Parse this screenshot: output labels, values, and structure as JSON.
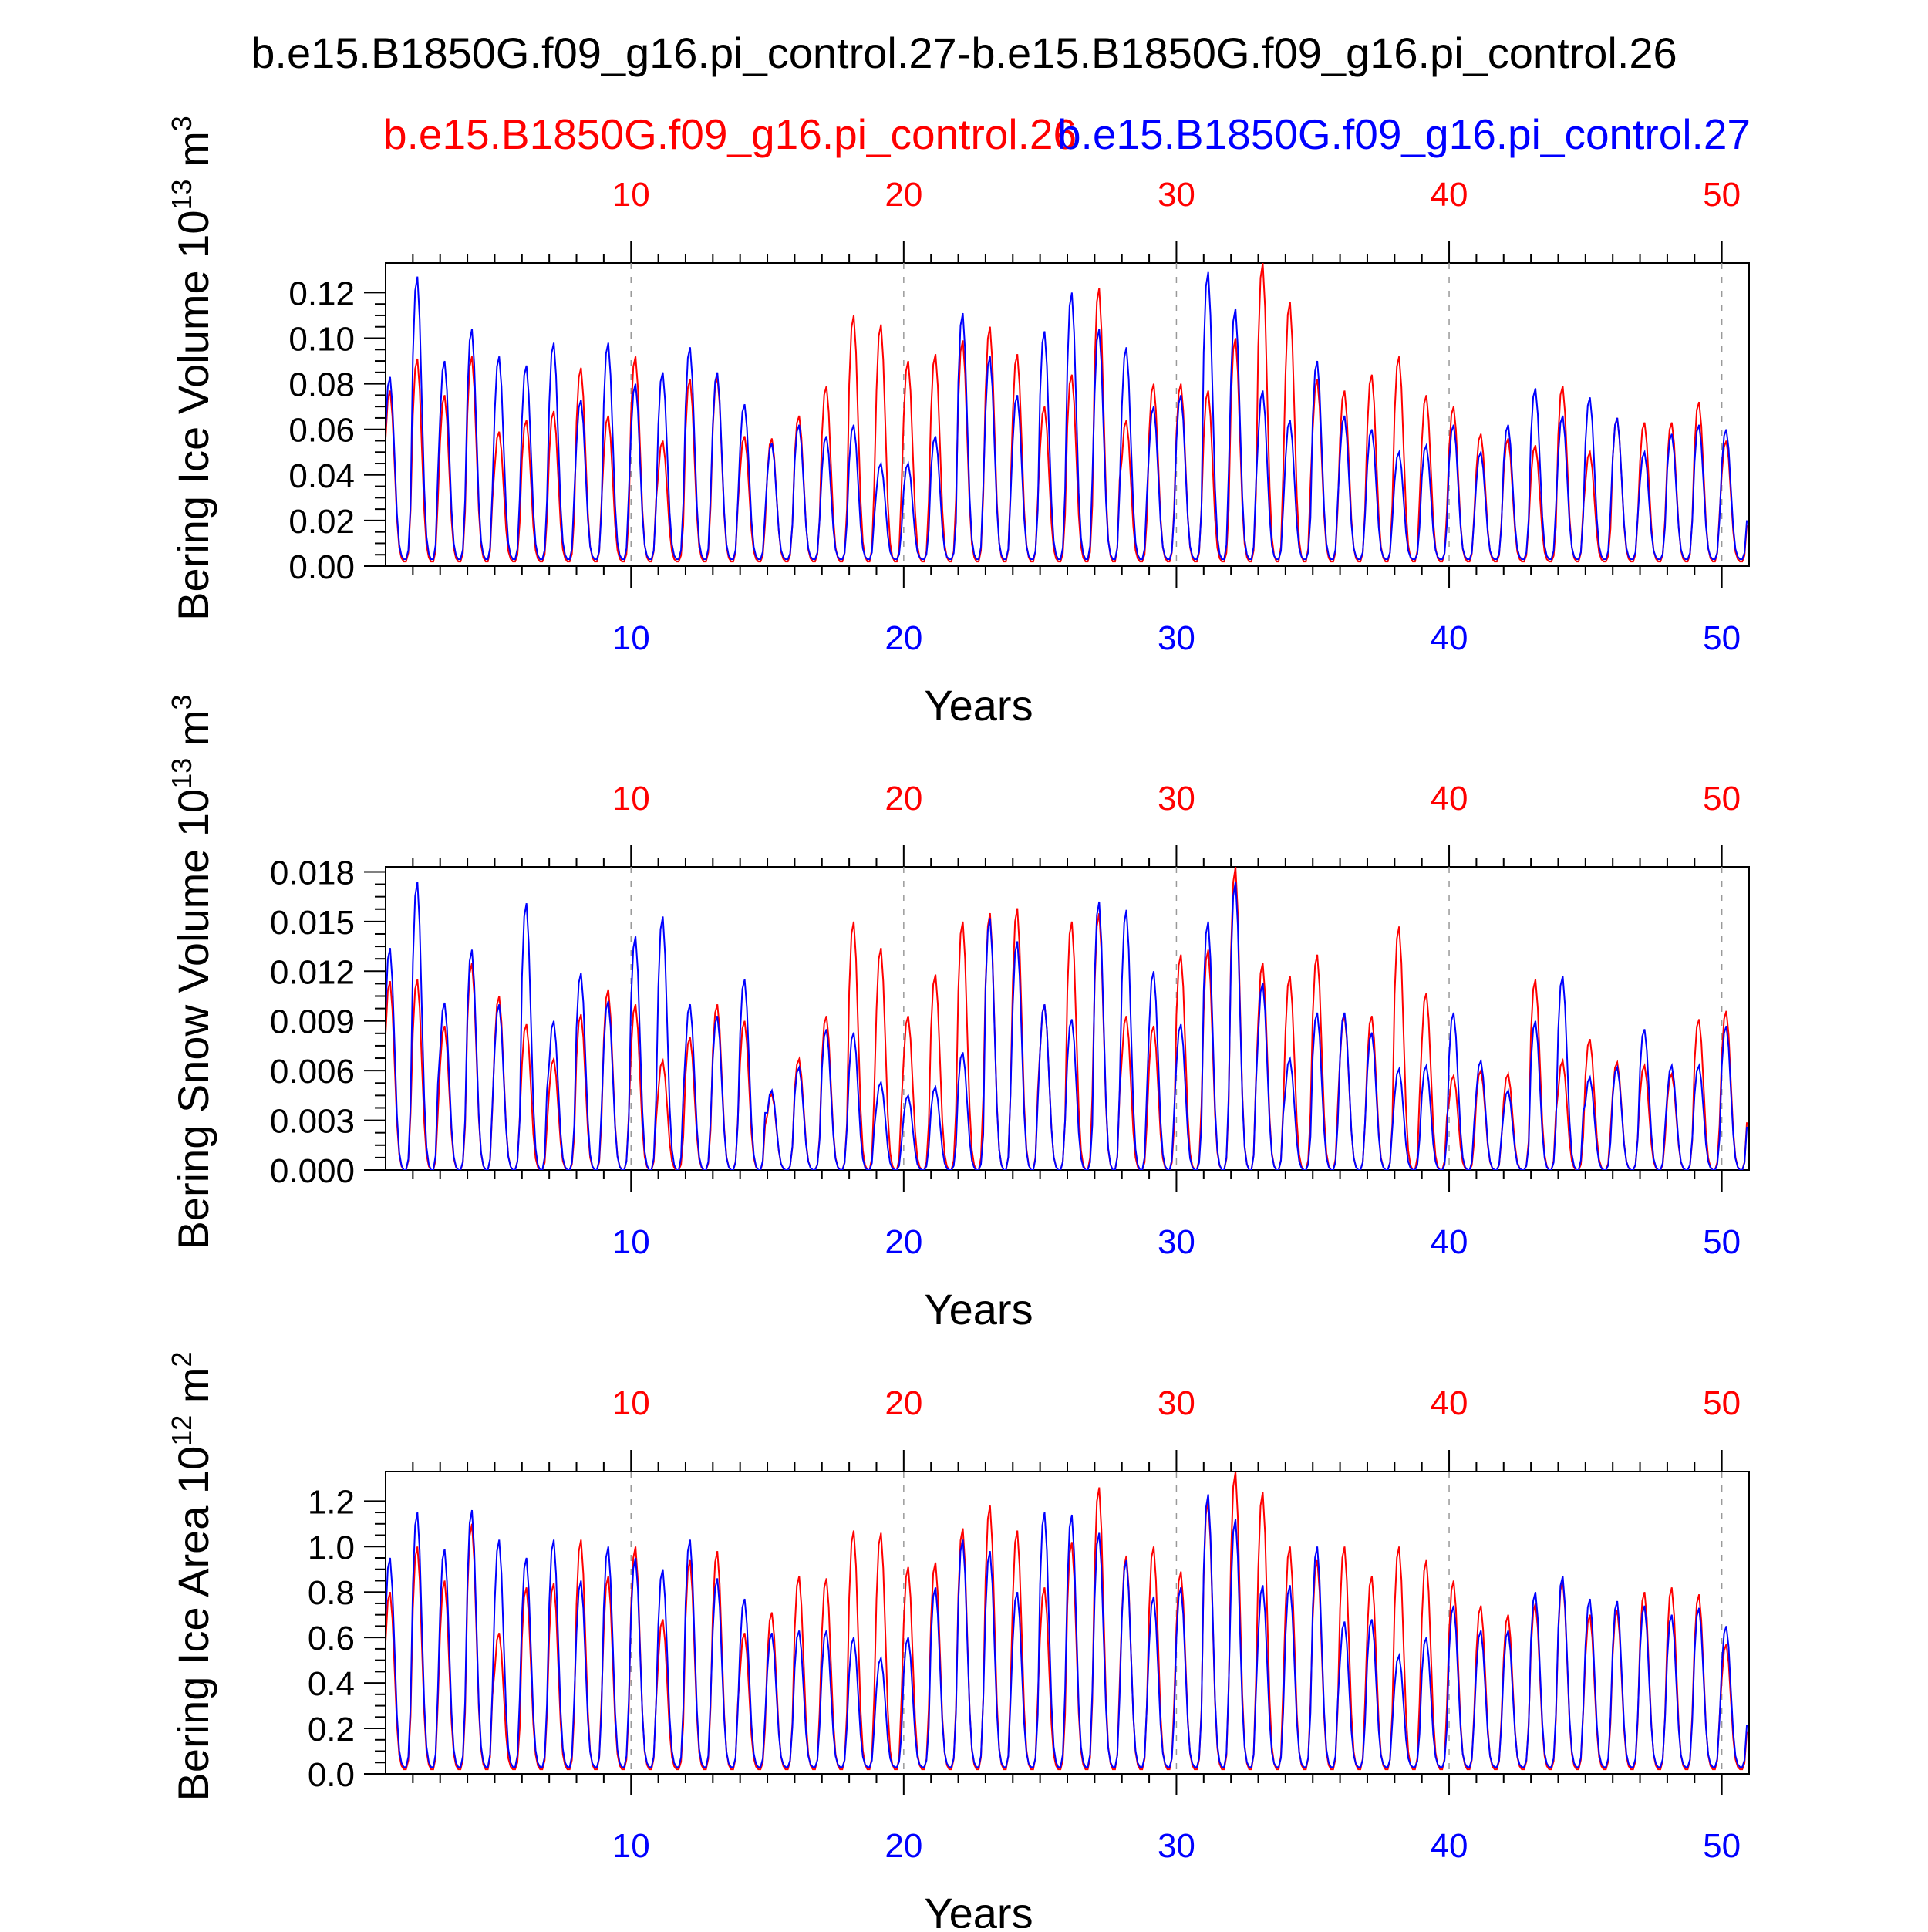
{
  "title": "b.e15.B1850G.f09_g16.pi_control.27-b.e15.B1850G.f09_g16.pi_control.26",
  "legend": {
    "series_a": "b.e15.B1850G.f09_g16.pi_control.26",
    "series_b": "b.e15.B1850G.f09_g16.pi_control.27"
  },
  "colors": {
    "series_a": "#ff0000",
    "series_b": "#0000ff",
    "axis": "#000000",
    "grid": "#999999"
  },
  "chart_data": [
    {
      "type": "line",
      "title": "",
      "xlabel": "Years",
      "ylabel": "Bering Ice Volume 10^13 m^3",
      "ylabel_main": "Bering Ice Volume 10",
      "ylabel_exp": "13",
      "ylabel_unit": " m",
      "ylabel_unit_exp": "3",
      "xlim": [
        1,
        51
      ],
      "ylim": [
        0,
        0.133
      ],
      "yticks": [
        0.0,
        0.02,
        0.04,
        0.06,
        0.08,
        0.1,
        0.12
      ],
      "ytick_labels": [
        "0.00",
        "0.02",
        "0.04",
        "0.06",
        "0.08",
        "0.10",
        "0.12"
      ],
      "xticks": [
        10,
        20,
        30,
        40,
        50
      ],
      "xtick_labels": [
        "10",
        "20",
        "30",
        "40",
        "50"
      ],
      "series": [
        {
          "name": "b.e15.B1850G.f09_g16.pi_control.26",
          "color": "#ff0000",
          "floor": 0.002,
          "peaks": [
            0.077,
            0.091,
            0.075,
            0.092,
            0.059,
            0.064,
            0.068,
            0.087,
            0.066,
            0.092,
            0.055,
            0.082,
            0.083,
            0.057,
            0.056,
            0.066,
            0.079,
            0.11,
            0.106,
            0.09,
            0.093,
            0.099,
            0.105,
            0.093,
            0.07,
            0.084,
            0.122,
            0.064,
            0.08,
            0.08,
            0.077,
            0.1,
            0.133,
            0.116,
            0.082,
            0.077,
            0.084,
            0.092,
            0.075,
            0.07,
            0.058,
            0.056,
            0.053,
            0.079,
            0.05,
            0.065,
            0.063,
            0.063,
            0.072,
            0.055
          ]
        },
        {
          "name": "b.e15.B1850G.f09_g16.pi_control.27",
          "color": "#0000ff",
          "floor": 0.003,
          "peaks": [
            0.083,
            0.127,
            0.09,
            0.104,
            0.092,
            0.088,
            0.098,
            0.073,
            0.098,
            0.08,
            0.085,
            0.096,
            0.085,
            0.071,
            0.054,
            0.062,
            0.057,
            0.062,
            0.045,
            0.045,
            0.057,
            0.111,
            0.092,
            0.075,
            0.103,
            0.12,
            0.104,
            0.096,
            0.07,
            0.075,
            0.129,
            0.113,
            0.077,
            0.064,
            0.09,
            0.066,
            0.06,
            0.05,
            0.053,
            0.062,
            0.05,
            0.062,
            0.078,
            0.066,
            0.074,
            0.065,
            0.05,
            0.058,
            0.062,
            0.06
          ]
        }
      ]
    },
    {
      "type": "line",
      "title": "",
      "xlabel": "Years",
      "ylabel": "Bering Snow Volume 10^13 m^3",
      "ylabel_main": "Bering Snow Volume 10",
      "ylabel_exp": "13",
      "ylabel_unit": " m",
      "ylabel_unit_exp": "3",
      "xlim": [
        1,
        51
      ],
      "ylim": [
        0,
        0.0183
      ],
      "yticks": [
        0.0,
        0.003,
        0.006,
        0.009,
        0.012,
        0.015,
        0.018
      ],
      "ytick_labels": [
        "0.000",
        "0.003",
        "0.006",
        "0.009",
        "0.012",
        "0.015",
        "0.018"
      ],
      "xticks": [
        10,
        20,
        30,
        40,
        50
      ],
      "xtick_labels": [
        "10",
        "20",
        "30",
        "40",
        "50"
      ],
      "series": [
        {
          "name": "b.e15.B1850G.f09_g16.pi_control.26",
          "color": "#ff0000",
          "floor": 0.0,
          "peaks": [
            0.0114,
            0.0115,
            0.0087,
            0.0125,
            0.0105,
            0.0088,
            0.0067,
            0.0094,
            0.0109,
            0.01,
            0.0066,
            0.008,
            0.01,
            0.009,
            0.0046,
            0.0067,
            0.0093,
            0.015,
            0.0134,
            0.0093,
            0.0118,
            0.015,
            0.0155,
            0.0158,
            0.01,
            0.015,
            0.0155,
            0.0093,
            0.0087,
            0.013,
            0.0133,
            0.0183,
            0.0125,
            0.0117,
            0.013,
            0.0093,
            0.0093,
            0.0147,
            0.0107,
            0.0057,
            0.006,
            0.0058,
            0.0115,
            0.0066,
            0.0079,
            0.0065,
            0.0063,
            0.0058,
            0.0091,
            0.0096
          ]
        },
        {
          "name": "b.e15.B1850G.f09_g16.pi_control.27",
          "color": "#0000ff",
          "floor": 0.0,
          "peaks": [
            0.0134,
            0.0174,
            0.0101,
            0.0133,
            0.01,
            0.0161,
            0.009,
            0.0119,
            0.0102,
            0.0141,
            0.0153,
            0.01,
            0.0093,
            0.0115,
            0.0048,
            0.0062,
            0.0085,
            0.0083,
            0.0053,
            0.0045,
            0.005,
            0.0071,
            0.0152,
            0.0138,
            0.01,
            0.0091,
            0.0162,
            0.0157,
            0.012,
            0.0088,
            0.015,
            0.0174,
            0.0113,
            0.0067,
            0.0095,
            0.0095,
            0.0083,
            0.0061,
            0.0063,
            0.0095,
            0.0066,
            0.0048,
            0.009,
            0.0117,
            0.0056,
            0.0062,
            0.0085,
            0.0063,
            0.0063,
            0.0087
          ]
        }
      ]
    },
    {
      "type": "line",
      "title": "",
      "xlabel": "Years",
      "ylabel": "Bering Ice Area 10^12 m^2",
      "ylabel_main": "Bering Ice Area 10",
      "ylabel_exp": "12",
      "ylabel_unit": " m",
      "ylabel_unit_exp": "2",
      "xlim": [
        1,
        51
      ],
      "ylim": [
        0,
        1.33
      ],
      "yticks": [
        0.0,
        0.2,
        0.4,
        0.6,
        0.8,
        1.0,
        1.2
      ],
      "ytick_labels": [
        "0.0",
        "0.2",
        "0.4",
        "0.6",
        "0.8",
        "1.0",
        "1.2"
      ],
      "xticks": [
        10,
        20,
        30,
        40,
        50
      ],
      "xtick_labels": [
        "10",
        "20",
        "30",
        "40",
        "50"
      ],
      "series": [
        {
          "name": "b.e15.B1850G.f09_g16.pi_control.26",
          "color": "#ff0000",
          "floor": 0.02,
          "peaks": [
            0.8,
            1.0,
            0.85,
            1.1,
            0.62,
            0.82,
            0.84,
            1.03,
            0.87,
            1.0,
            0.68,
            0.94,
            0.98,
            0.62,
            0.71,
            0.87,
            0.86,
            1.07,
            1.06,
            0.91,
            0.93,
            1.08,
            1.18,
            1.07,
            0.82,
            1.02,
            1.26,
            0.96,
            1.0,
            0.89,
            1.2,
            1.33,
            1.24,
            1.0,
            0.94,
            1.0,
            0.87,
            1.0,
            0.94,
            0.85,
            0.74,
            0.7,
            0.75,
            0.85,
            0.7,
            0.72,
            0.8,
            0.82,
            0.79,
            0.57
          ]
        },
        {
          "name": "b.e15.B1850G.f09_g16.pi_control.27",
          "color": "#0000ff",
          "floor": 0.03,
          "peaks": [
            0.95,
            1.15,
            0.99,
            1.16,
            1.03,
            0.95,
            1.03,
            0.85,
            1.0,
            0.95,
            0.9,
            1.03,
            0.86,
            0.77,
            0.62,
            0.63,
            0.63,
            0.6,
            0.51,
            0.6,
            0.82,
            1.03,
            0.98,
            0.8,
            1.15,
            1.14,
            1.06,
            0.94,
            0.78,
            0.82,
            1.23,
            1.12,
            0.83,
            0.83,
            1.0,
            0.67,
            0.68,
            0.52,
            0.6,
            0.74,
            0.63,
            0.63,
            0.8,
            0.87,
            0.77,
            0.76,
            0.74,
            0.7,
            0.73,
            0.65
          ]
        }
      ]
    }
  ]
}
